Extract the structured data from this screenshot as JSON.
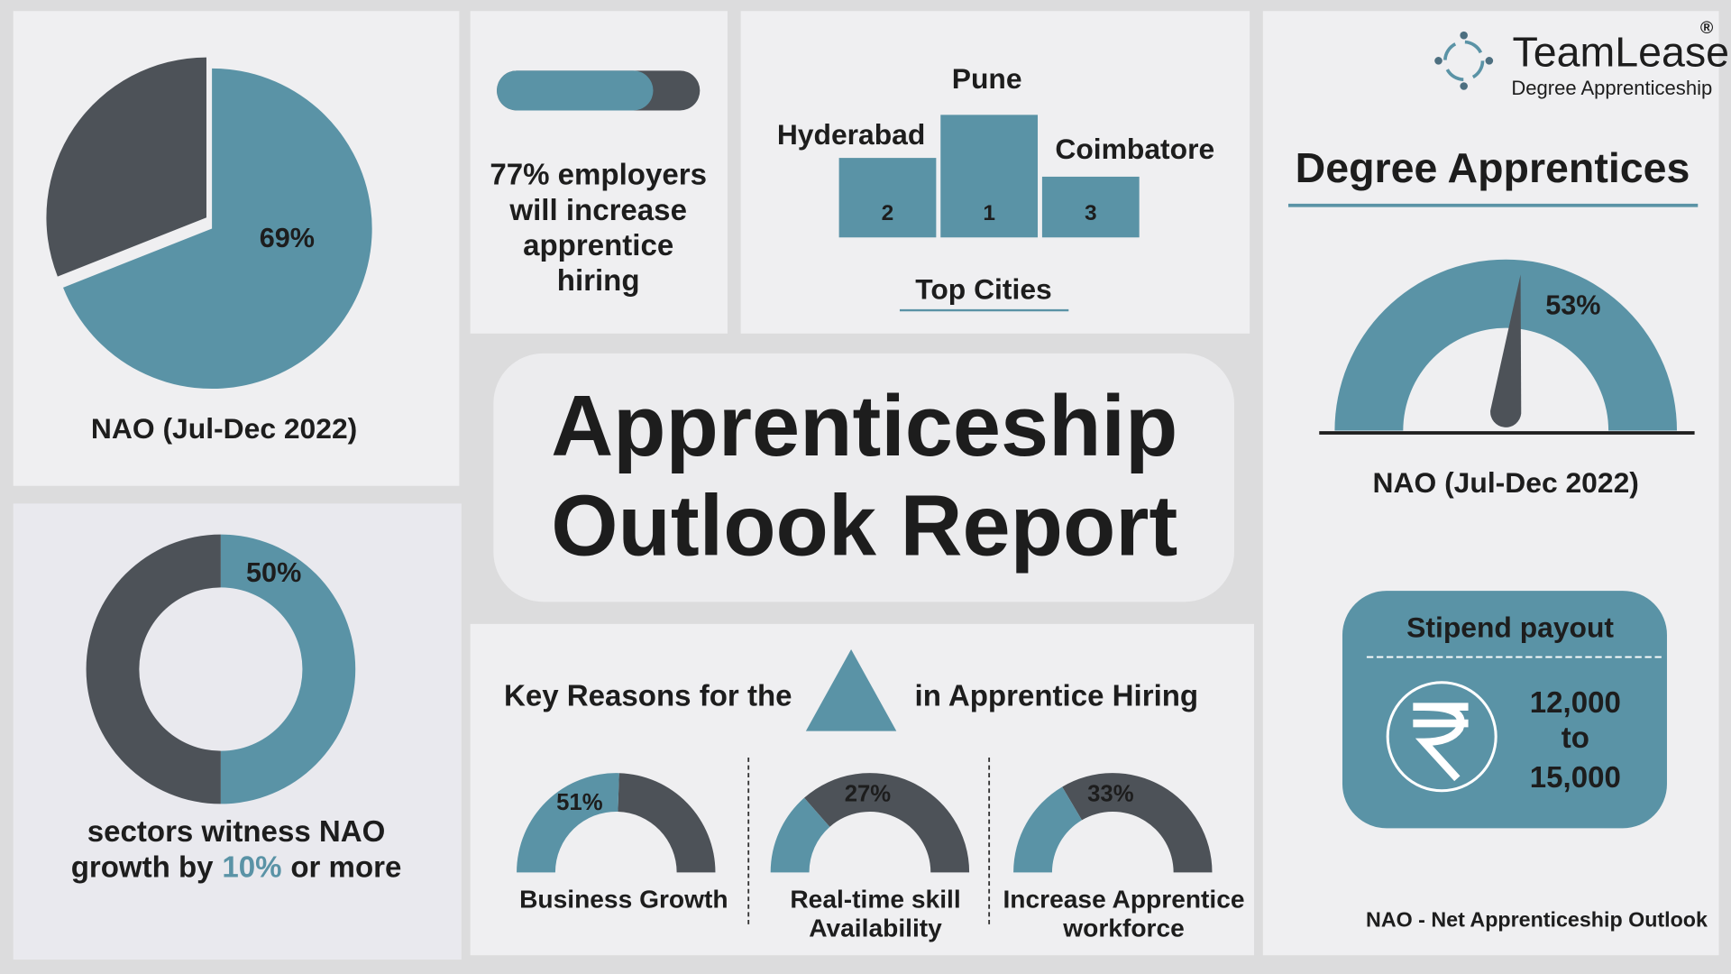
{
  "panels": {
    "pie": {
      "value": 69,
      "label": "69%",
      "caption": "NAO (Jul-Dec 2022)"
    },
    "bar": {
      "value": 77,
      "lines": [
        "77% employers",
        "will increase",
        "apprentice",
        "hiring"
      ]
    },
    "cities": {
      "title": "Top Cities",
      "items": [
        {
          "name": "Hyderabad",
          "rank": "2"
        },
        {
          "name": "Pune",
          "rank": "1"
        },
        {
          "name": "Coimbatore",
          "rank": "3"
        }
      ]
    },
    "donut": {
      "value": 50,
      "label": "50%",
      "line1": "sectors witness NAO",
      "line2_before": "growth by",
      "highlight": "10%",
      "line2_after": "or more"
    },
    "title": [
      "Apprenticeship",
      "Outlook Report"
    ],
    "reasons": {
      "title_before": "Key Reasons for the",
      "title_after": "in Apprentice Hiring",
      "items": [
        {
          "value": 51,
          "label": "51%",
          "name": [
            "Business Growth"
          ]
        },
        {
          "value": 27,
          "label": "27%",
          "name": [
            "Real-time skill",
            "Availability"
          ]
        },
        {
          "value": 33,
          "label": "33%",
          "name": [
            "Increase Apprentice",
            "workforce"
          ]
        }
      ]
    },
    "brand": {
      "name": "TeamLease",
      "sub": "Degree Apprenticeship",
      "mark": "®"
    },
    "gauge": {
      "heading": "Degree Apprentices",
      "value": 53,
      "label": "53%",
      "caption": "NAO (Jul-Dec 2022)"
    },
    "stipend": {
      "title": "Stipend payout",
      "lines": [
        "12,000",
        "to",
        "15,000"
      ]
    },
    "footnote": "NAO - Net Apprenticeship Outlook"
  }
}
